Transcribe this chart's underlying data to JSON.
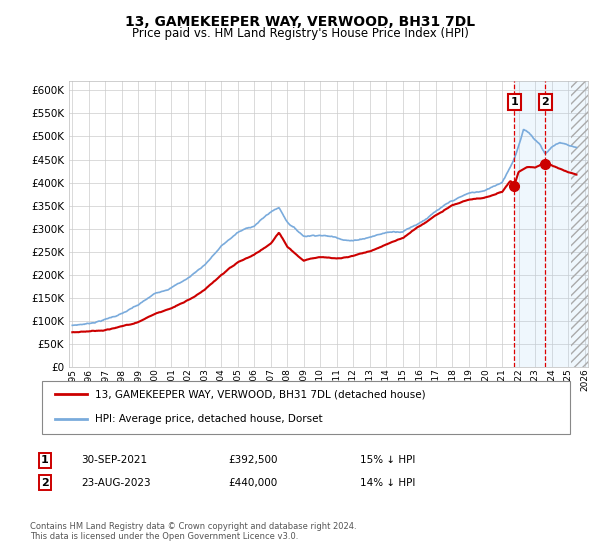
{
  "title": "13, GAMEKEEPER WAY, VERWOOD, BH31 7DL",
  "subtitle": "Price paid vs. HM Land Registry's House Price Index (HPI)",
  "legend_line1": "13, GAMEKEEPER WAY, VERWOOD, BH31 7DL (detached house)",
  "legend_line2": "HPI: Average price, detached house, Dorset",
  "annotation1_date": "30-SEP-2021",
  "annotation1_price": "£392,500",
  "annotation1_hpi": "15% ↓ HPI",
  "annotation2_date": "23-AUG-2023",
  "annotation2_price": "£440,000",
  "annotation2_hpi": "14% ↓ HPI",
  "footnote": "Contains HM Land Registry data © Crown copyright and database right 2024.\nThis data is licensed under the Open Government Licence v3.0.",
  "hpi_color": "#7aabdc",
  "price_color": "#cc0000",
  "marker1_date_num": 2021.75,
  "marker2_date_num": 2023.62,
  "marker1_price": 392500,
  "marker2_price": 440000,
  "ylim": [
    0,
    620000
  ],
  "xlim_start": 1994.8,
  "xlim_end": 2026.2,
  "yticks": [
    0,
    50000,
    100000,
    150000,
    200000,
    250000,
    300000,
    350000,
    400000,
    450000,
    500000,
    550000,
    600000
  ],
  "xticks": [
    1995,
    1996,
    1997,
    1998,
    1999,
    2000,
    2001,
    2002,
    2003,
    2004,
    2005,
    2006,
    2007,
    2008,
    2009,
    2010,
    2011,
    2012,
    2013,
    2014,
    2015,
    2016,
    2017,
    2018,
    2019,
    2020,
    2021,
    2022,
    2023,
    2024,
    2025,
    2026
  ]
}
